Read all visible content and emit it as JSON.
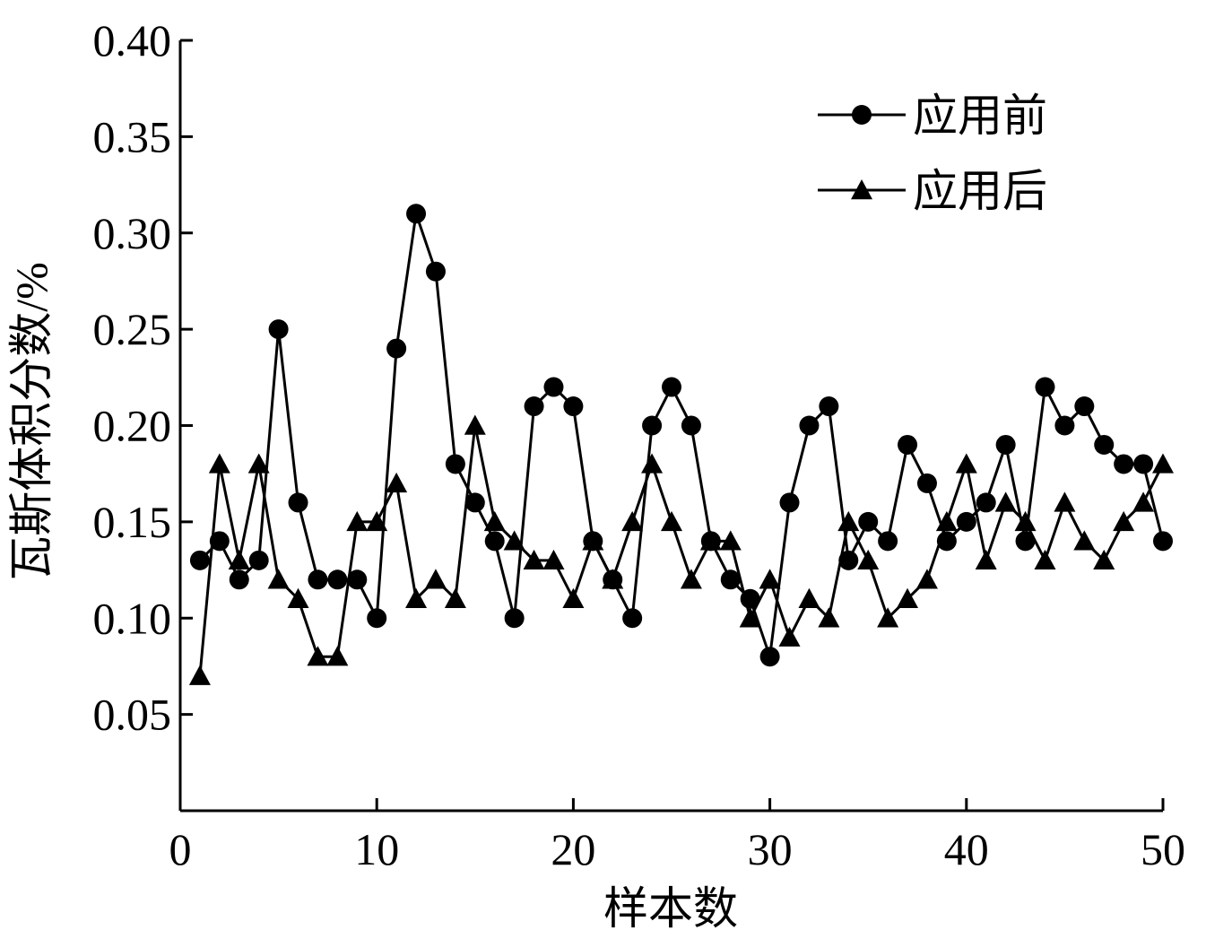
{
  "chart_data": {
    "type": "line",
    "xlabel": "样本数",
    "ylabel": "瓦斯体积分数/%",
    "x": [
      1,
      2,
      3,
      4,
      5,
      6,
      7,
      8,
      9,
      10,
      11,
      12,
      13,
      14,
      15,
      16,
      17,
      18,
      19,
      20,
      21,
      22,
      23,
      24,
      25,
      26,
      27,
      28,
      29,
      30,
      31,
      32,
      33,
      34,
      35,
      36,
      37,
      38,
      39,
      40,
      41,
      42,
      43,
      44,
      45,
      46,
      47,
      48,
      49,
      50
    ],
    "series": [
      {
        "name": "应用前",
        "color": "#000000",
        "marker": "circle",
        "values": [
          0.13,
          0.14,
          0.12,
          0.13,
          0.25,
          0.16,
          0.12,
          0.12,
          0.12,
          0.1,
          0.24,
          0.31,
          0.28,
          0.18,
          0.16,
          0.14,
          0.1,
          0.21,
          0.22,
          0.21,
          0.14,
          0.12,
          0.1,
          0.2,
          0.22,
          0.2,
          0.14,
          0.12,
          0.11,
          0.08,
          0.16,
          0.2,
          0.21,
          0.13,
          0.15,
          0.14,
          0.19,
          0.17,
          0.14,
          0.15,
          0.16,
          0.19,
          0.14,
          0.22,
          0.2,
          0.21,
          0.19,
          0.18,
          0.18,
          0.14
        ]
      },
      {
        "name": "应用后",
        "color": "#000000",
        "marker": "triangle",
        "values": [
          0.07,
          0.18,
          0.13,
          0.18,
          0.12,
          0.11,
          0.08,
          0.08,
          0.15,
          0.15,
          0.17,
          0.11,
          0.12,
          0.11,
          0.2,
          0.15,
          0.14,
          0.13,
          0.13,
          0.11,
          0.14,
          0.12,
          0.15,
          0.18,
          0.15,
          0.12,
          0.14,
          0.14,
          0.1,
          0.12,
          0.09,
          0.11,
          0.1,
          0.15,
          0.13,
          0.1,
          0.11,
          0.12,
          0.15,
          0.18,
          0.13,
          0.16,
          0.15,
          0.13,
          0.16,
          0.14,
          0.13,
          0.15,
          0.16,
          0.18
        ]
      }
    ],
    "xlim": [
      0,
      50
    ],
    "xticks": [
      0,
      10,
      20,
      30,
      40,
      50
    ],
    "ylim": [
      0,
      0.4
    ],
    "yticks": [
      0.05,
      {
        "value": 0.1,
        "label": "0.10"
      },
      0.15,
      {
        "value": 0.2,
        "label": "0.20"
      },
      0.25,
      {
        "value": 0.3,
        "label": "0.30"
      },
      0.35,
      {
        "value": 0.4,
        "label": "0.40"
      }
    ],
    "grid": false,
    "legend": "upper right"
  }
}
